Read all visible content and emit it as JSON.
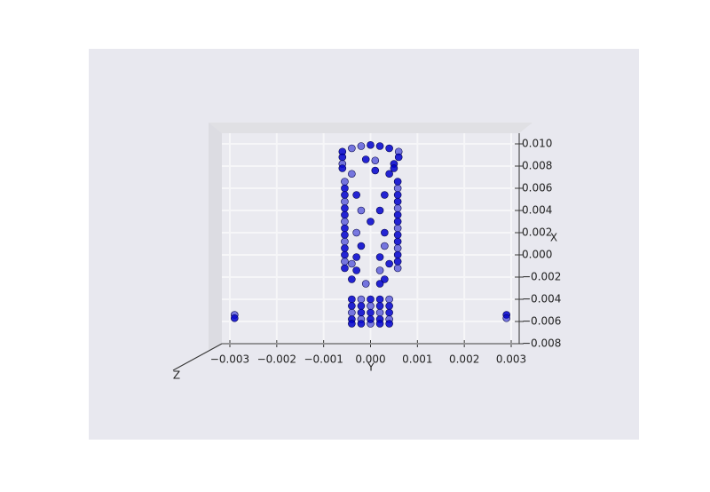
{
  "chart_data": {
    "type": "scatter",
    "xlabel": "Y",
    "ylabel": "X",
    "zlabel": "Z",
    "color": "#0000cc",
    "xlim": [
      -0.003,
      0.003
    ],
    "xticks": [
      {
        "value": -0.003,
        "label": "−0.003"
      },
      {
        "value": -0.002,
        "label": "−0.002"
      },
      {
        "value": -0.001,
        "label": "−0.001"
      },
      {
        "value": 0,
        "label": "0.000"
      },
      {
        "value": 0.001,
        "label": "0.001"
      },
      {
        "value": 0.002,
        "label": "0.002"
      },
      {
        "value": 0.003,
        "label": "0.003"
      }
    ],
    "ylim": [
      -0.008,
      0.01
    ],
    "yticks": [
      {
        "value": 0.01,
        "label": "0.010"
      },
      {
        "value": 0.008,
        "label": "0.008"
      },
      {
        "value": 0.006,
        "label": "0.006"
      },
      {
        "value": 0.004,
        "label": "0.004"
      },
      {
        "value": 0.002,
        "label": "0.002"
      },
      {
        "value": 0,
        "label": "0.000"
      },
      {
        "value": -0.002,
        "label": "−0.002"
      },
      {
        "value": -0.004,
        "label": "−0.004"
      },
      {
        "value": -0.006,
        "label": "−0.006"
      },
      {
        "value": -0.008,
        "label": "−0.008"
      }
    ],
    "grid": true,
    "x": [
      -0.0002,
      0,
      0.0002,
      -0.0004,
      0.0004,
      -0.0006,
      0.0006,
      -0.0006,
      0.0006,
      -0.0006,
      0.0005,
      -0.0001,
      0.0001,
      -0.0006,
      0.0005,
      -0.0004,
      0.0004,
      0.0001,
      -0.00055,
      -0.00055,
      -0.00055,
      -0.00055,
      -0.00055,
      -0.00055,
      -0.00055,
      -0.00055,
      -0.00055,
      -0.00055,
      -0.00055,
      -0.00055,
      -0.00055,
      -0.00055,
      0.00058,
      0.00058,
      0.00058,
      0.00058,
      0.00058,
      0.00058,
      0.00058,
      0.00058,
      0.00058,
      0.00058,
      0.00058,
      0.00058,
      0.00058,
      0.00058,
      -0.0003,
      0.0003,
      -0.0002,
      0.0002,
      0,
      -0.0003,
      0.0003,
      -0.0002,
      0.0003,
      -0.0003,
      0.0002,
      -0.0004,
      0.0004,
      -0.0003,
      0.0002,
      -0.0004,
      0.0003,
      -0.0001,
      0.0002,
      -0.0004,
      -0.0002,
      0,
      0.0002,
      0.0004,
      -0.0004,
      -0.0002,
      0,
      0.0002,
      0.0004,
      -0.0004,
      -0.0002,
      0,
      0.0002,
      0.0004,
      -0.0004,
      -0.0002,
      0,
      0.0002,
      0.0004,
      -0.0004,
      -0.0002,
      0,
      0.0002,
      0.0004,
      -0.0029,
      -0.0029,
      0.0029,
      0.0029
    ],
    "y": [
      0.0098,
      0.0099,
      0.0098,
      0.0096,
      0.0096,
      0.0093,
      0.0093,
      0.0088,
      0.0088,
      0.0082,
      0.0082,
      0.0086,
      0.0085,
      0.0078,
      0.0078,
      0.0073,
      0.0073,
      0.0076,
      0.0066,
      0.006,
      0.0054,
      0.0048,
      0.0042,
      0.0036,
      0.003,
      0.0024,
      0.0018,
      0.0012,
      0.0006,
      0,
      -0.0006,
      -0.0012,
      0.0066,
      0.006,
      0.0054,
      0.0048,
      0.0042,
      0.0036,
      0.003,
      0.0024,
      0.0018,
      0.0012,
      0.0006,
      0,
      -0.0006,
      -0.0012,
      0.0054,
      0.0054,
      0.004,
      0.004,
      0.003,
      0.002,
      0.002,
      0.0008,
      0.0008,
      -0.0002,
      -0.0002,
      -0.0008,
      -0.0008,
      -0.0014,
      -0.0014,
      -0.0022,
      -0.0022,
      -0.0026,
      -0.0026,
      -0.004,
      -0.004,
      -0.004,
      -0.004,
      -0.004,
      -0.0046,
      -0.0046,
      -0.0046,
      -0.0046,
      -0.0046,
      -0.0052,
      -0.0052,
      -0.0052,
      -0.0052,
      -0.0052,
      -0.0058,
      -0.0058,
      -0.0058,
      -0.0058,
      -0.0058,
      -0.0062,
      -0.0062,
      -0.0062,
      -0.0062,
      -0.0062,
      -0.0054,
      -0.0057,
      -0.0054,
      -0.0057
    ]
  }
}
